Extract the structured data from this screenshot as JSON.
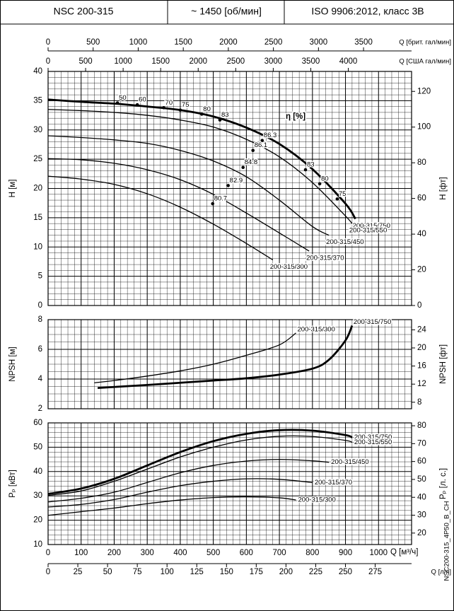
{
  "header": [
    "NSC 200-315",
    "~ 1450 [об/мин]",
    "ISO 9906:2012, класс 3B"
  ],
  "code": "NSC200-315_4P50_B_CH",
  "x_axes": [
    {
      "label": "Q [брит. гал/мин]",
      "position": "top",
      "xlim": [
        0,
        4033
      ],
      "xticks": [
        0,
        500,
        1000,
        1500,
        2000,
        2500,
        3000,
        3500
      ]
    },
    {
      "label": "Q [США гал/мин]",
      "position": "top",
      "xlim": [
        0,
        4843
      ],
      "xticks": [
        0,
        500,
        1000,
        1500,
        2000,
        2500,
        3000,
        3500,
        4000
      ]
    },
    {
      "label": "Q [л/ч]",
      "position": "bottom",
      "xlim": [
        0,
        305.6
      ],
      "xticks": [
        0,
        25,
        50,
        75,
        100,
        125,
        150,
        175,
        200,
        225,
        250,
        275
      ]
    }
  ],
  "chart_data": [
    {
      "type": "line",
      "y_label": "H [м]",
      "y2_label": "H [фт]",
      "xlim": [
        0,
        1100
      ],
      "xticks": [
        0,
        100,
        200,
        300,
        400,
        500,
        600,
        700,
        800,
        900,
        1000
      ],
      "ylim": [
        0,
        40
      ],
      "yticks": [
        0,
        5,
        10,
        15,
        20,
        25,
        30,
        35,
        40
      ],
      "y2lim": [
        0,
        131.2
      ],
      "y2ticks": [
        0,
        20,
        40,
        60,
        80,
        100,
        120
      ],
      "efficiency_label": "η [%]",
      "efficiency_points": [
        {
          "value": 50,
          "x": 210,
          "y": 34.6
        },
        {
          "value": 60,
          "x": 270,
          "y": 34.3
        },
        {
          "value": 70,
          "x": 350,
          "y": 33.8
        },
        {
          "value": 75,
          "x": 400,
          "y": 33.4
        },
        {
          "value": 80,
          "x": 465,
          "y": 32.7
        },
        {
          "value": 83,
          "x": 520,
          "y": 31.7
        },
        {
          "value": 86.3,
          "x": 648,
          "y": 28.2
        },
        {
          "value": 86.1,
          "x": 620,
          "y": 26.5
        },
        {
          "value": 84.8,
          "x": 590,
          "y": 23.6
        },
        {
          "value": 82.9,
          "x": 545,
          "y": 20.5
        },
        {
          "value": 80.7,
          "x": 498,
          "y": 17.4
        },
        {
          "value": 83,
          "x": 779,
          "y": 23.2
        },
        {
          "value": 80,
          "x": 822,
          "y": 20.8
        },
        {
          "value": 75,
          "x": 875,
          "y": 18.2
        }
      ],
      "series": [
        {
          "name": "200-315/750",
          "color": "#000000",
          "bold": true,
          "x": [
            0,
            100,
            200,
            300,
            400,
            500,
            600,
            700,
            800,
            900,
            930
          ],
          "values": [
            35.2,
            34.8,
            34.5,
            34.0,
            33.4,
            32.3,
            30.4,
            27.6,
            23.3,
            17.4,
            14.8
          ]
        },
        {
          "name": "200-315/550",
          "color": "#000000",
          "bold": false,
          "x": [
            0,
            100,
            200,
            300,
            400,
            500,
            600,
            700,
            800,
            900,
            920
          ],
          "values": [
            33.5,
            33.3,
            33.0,
            32.5,
            31.7,
            30.5,
            28.4,
            25.4,
            21.0,
            15.3,
            14.0
          ]
        },
        {
          "name": "200-315/450",
          "color": "#000000",
          "bold": false,
          "x": [
            0,
            100,
            200,
            300,
            400,
            500,
            600,
            700,
            800,
            850
          ],
          "values": [
            29.0,
            28.7,
            28.3,
            27.7,
            26.5,
            24.7,
            22.0,
            18.0,
            13.5,
            12.0
          ]
        },
        {
          "name": "200-315/370",
          "color": "#000000",
          "bold": false,
          "x": [
            0,
            100,
            200,
            300,
            400,
            500,
            600,
            700,
            790
          ],
          "values": [
            25.1,
            24.9,
            24.3,
            23.2,
            21.5,
            19.0,
            15.8,
            12.4,
            9.3
          ]
        },
        {
          "name": "200-315/300",
          "color": "#000000",
          "bold": false,
          "x": [
            0,
            100,
            200,
            300,
            400,
            500,
            600,
            680
          ],
          "values": [
            22.1,
            21.6,
            20.7,
            19.1,
            16.8,
            13.9,
            10.6,
            7.8
          ]
        }
      ]
    },
    {
      "type": "line",
      "y_label": "NPSH [м]",
      "y2_label": "NPSH [фт]",
      "xlim": [
        0,
        1100
      ],
      "xticks": [
        0,
        100,
        200,
        300,
        400,
        500,
        600,
        700,
        800,
        900,
        1000
      ],
      "ylim": [
        2,
        8
      ],
      "yticks": [
        2,
        4,
        6,
        8
      ],
      "y2lim": [
        6.56,
        26.25
      ],
      "y2ticks": [
        8,
        12,
        16,
        20,
        24
      ],
      "series": [
        {
          "name": "200-315/300",
          "color": "#000000",
          "bold": false,
          "x": [
            140,
            200,
            300,
            400,
            500,
            600,
            700,
            750
          ],
          "values": [
            3.75,
            3.9,
            4.2,
            4.55,
            5.0,
            5.6,
            6.3,
            7.1
          ]
        },
        {
          "name": "200-315/750",
          "color": "#000000",
          "bold": true,
          "x": [
            150,
            300,
            400,
            500,
            600,
            700,
            800,
            850,
            900,
            920
          ],
          "values": [
            3.4,
            3.6,
            3.75,
            3.9,
            4.05,
            4.3,
            4.7,
            5.3,
            6.6,
            7.6
          ]
        }
      ]
    },
    {
      "type": "line",
      "y_label": "Pₚ [кВт]",
      "y2_label": "Pₚ [л. с.]",
      "x_label": "Q [м³/ч]",
      "xlim": [
        0,
        1100
      ],
      "xticks": [
        0,
        100,
        200,
        300,
        400,
        500,
        600,
        700,
        800,
        900,
        1000
      ],
      "ylim": [
        10,
        60
      ],
      "yticks": [
        10,
        20,
        30,
        40,
        50,
        60
      ],
      "y2lim": [
        13.6,
        81.6
      ],
      "y2ticks": [
        20,
        30,
        40,
        50,
        60,
        70,
        80
      ],
      "series": [
        {
          "name": "200-315/750",
          "color": "#000000",
          "bold": true,
          "x": [
            0,
            100,
            200,
            300,
            400,
            500,
            600,
            700,
            800,
            900,
            920
          ],
          "values": [
            30.8,
            33,
            37,
            42.5,
            48,
            52.5,
            55.5,
            57,
            56.8,
            55,
            54
          ]
        },
        {
          "name": "200-315/550",
          "color": "#000000",
          "bold": false,
          "x": [
            0,
            100,
            200,
            300,
            400,
            500,
            600,
            700,
            800,
            900,
            920
          ],
          "values": [
            30.2,
            32,
            36,
            41,
            46,
            50,
            53,
            54.5,
            54.4,
            52.8,
            52
          ]
        },
        {
          "name": "200-315/450",
          "color": "#000000",
          "bold": false,
          "x": [
            0,
            100,
            200,
            300,
            400,
            500,
            600,
            700,
            800,
            850
          ],
          "values": [
            27.5,
            29,
            31.5,
            35.5,
            39.5,
            42.5,
            44.3,
            45,
            44.4,
            43.8
          ]
        },
        {
          "name": "200-315/370",
          "color": "#000000",
          "bold": false,
          "x": [
            0,
            100,
            200,
            300,
            400,
            500,
            600,
            700,
            800
          ],
          "values": [
            25.4,
            26.5,
            28.5,
            31.5,
            34.2,
            36,
            37,
            36.8,
            35.5
          ]
        },
        {
          "name": "200-315/300",
          "color": "#000000",
          "bold": false,
          "x": [
            0,
            100,
            200,
            300,
            400,
            500,
            600,
            700,
            750
          ],
          "values": [
            22,
            23.5,
            25,
            26.8,
            28.3,
            29.3,
            29.6,
            29.2,
            28.3
          ]
        }
      ]
    }
  ]
}
